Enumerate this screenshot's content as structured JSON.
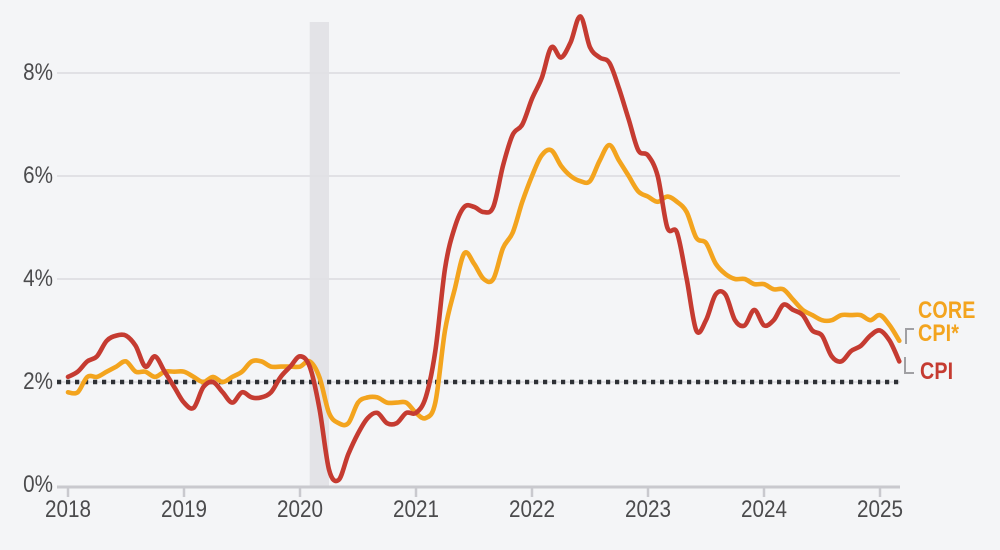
{
  "chart_data": {
    "type": "line",
    "x_axis": {
      "tick_labels": [
        "2018",
        "2019",
        "2020",
        "2021",
        "2022",
        "2023",
        "2024",
        "2025"
      ],
      "start_year": 2018
    },
    "y_axis": {
      "tick_labels": [
        "0%",
        "2%",
        "4%",
        "6%",
        "8%"
      ],
      "tick_values": [
        0,
        2,
        4,
        6,
        8
      ],
      "ylim": [
        0,
        9.3
      ]
    },
    "grid": true,
    "legend_position": "right",
    "reference_line": {
      "value": 2,
      "style": "dotted"
    },
    "recession_band": {
      "start_month": "2020-02",
      "end_month": "2020-04"
    },
    "series_start_month": "2018-01",
    "series": [
      {
        "id": "core_cpi",
        "name": "CORE CPI*",
        "color": "#f3a41e",
        "values": [
          1.8,
          1.8,
          2.1,
          2.1,
          2.2,
          2.3,
          2.4,
          2.2,
          2.2,
          2.1,
          2.2,
          2.2,
          2.2,
          2.1,
          2.0,
          2.1,
          2.0,
          2.1,
          2.2,
          2.4,
          2.4,
          2.3,
          2.3,
          2.3,
          2.3,
          2.4,
          2.1,
          1.4,
          1.2,
          1.2,
          1.6,
          1.7,
          1.7,
          1.6,
          1.6,
          1.6,
          1.4,
          1.3,
          1.6,
          3.0,
          3.8,
          4.5,
          4.3,
          4.0,
          4.0,
          4.6,
          4.9,
          5.5,
          6.0,
          6.4,
          6.5,
          6.2,
          6.0,
          5.9,
          5.9,
          6.3,
          6.6,
          6.3,
          6.0,
          5.7,
          5.6,
          5.5,
          5.6,
          5.5,
          5.3,
          4.8,
          4.7,
          4.3,
          4.1,
          4.0,
          4.0,
          3.9,
          3.9,
          3.8,
          3.8,
          3.6,
          3.4,
          3.3,
          3.2,
          3.2,
          3.3,
          3.3,
          3.3,
          3.2,
          3.3,
          3.1,
          2.8
        ]
      },
      {
        "id": "cpi",
        "name": "CPI",
        "color": "#c53b31",
        "values": [
          2.1,
          2.2,
          2.4,
          2.5,
          2.8,
          2.9,
          2.9,
          2.7,
          2.3,
          2.5,
          2.2,
          1.9,
          1.6,
          1.5,
          1.9,
          2.0,
          1.8,
          1.6,
          1.8,
          1.7,
          1.7,
          1.8,
          2.1,
          2.3,
          2.5,
          2.3,
          1.5,
          0.3,
          0.1,
          0.6,
          1.0,
          1.3,
          1.4,
          1.2,
          1.2,
          1.4,
          1.4,
          1.7,
          2.6,
          4.2,
          5.0,
          5.4,
          5.4,
          5.3,
          5.4,
          6.2,
          6.8,
          7.0,
          7.5,
          7.9,
          8.5,
          8.3,
          8.6,
          9.1,
          8.5,
          8.3,
          8.2,
          7.7,
          7.1,
          6.5,
          6.4,
          6.0,
          5.0,
          4.9,
          4.0,
          3.0,
          3.2,
          3.7,
          3.7,
          3.2,
          3.1,
          3.4,
          3.1,
          3.2,
          3.5,
          3.4,
          3.3,
          3.0,
          2.9,
          2.5,
          2.4,
          2.6,
          2.7,
          2.9,
          3.0,
          2.8,
          2.4
        ]
      }
    ]
  },
  "legend": {
    "core_line1": "CORE",
    "core_line2": "CPI*",
    "cpi": "CPI"
  },
  "colors": {
    "background": "#f4f5f7",
    "grid": "#e1e1e5",
    "axis": "#c9c9ce",
    "tick_label": "#4b4b4d",
    "recession_band": "#e3e3e7",
    "dotted_target": "#2e3136",
    "bracket": "#a0a0a4",
    "core_cpi": "#f3a41e",
    "cpi": "#c53b31"
  }
}
